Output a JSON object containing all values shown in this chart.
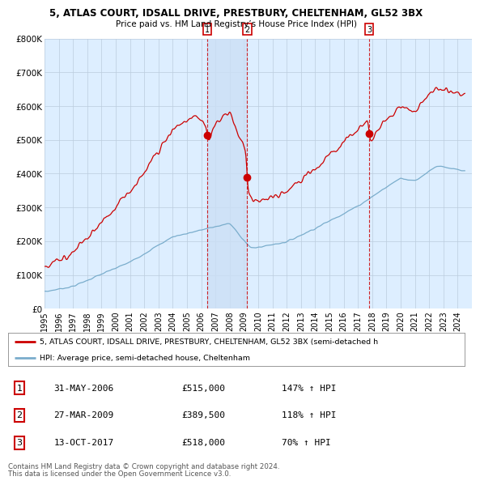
{
  "title_line1": "5, ATLAS COURT, IDSALL DRIVE, PRESTBURY, CHELTENHAM, GL52 3BX",
  "title_line2": "Price paid vs. HM Land Registry’s House Price Index (HPI)",
  "ylim": [
    0,
    800000
  ],
  "yticks": [
    0,
    100000,
    200000,
    300000,
    400000,
    500000,
    600000,
    700000,
    800000
  ],
  "ytick_labels": [
    "£0",
    "£100K",
    "£200K",
    "£300K",
    "£400K",
    "£500K",
    "£600K",
    "£700K",
    "£800K"
  ],
  "sale_color": "#cc0000",
  "hpi_color": "#7aadcc",
  "bg_color": "#ffffff",
  "plot_bg_color": "#ddeeff",
  "grid_color": "#bbccdd",
  "shade_color": "#cce0f5",
  "purchases": [
    {
      "label": "1",
      "date": "31-MAY-2006",
      "x": 2006.42,
      "price": 515000,
      "pct": "147%"
    },
    {
      "label": "2",
      "date": "27-MAR-2009",
      "x": 2009.23,
      "price": 389500,
      "pct": "118%"
    },
    {
      "label": "3",
      "date": "13-OCT-2017",
      "x": 2017.78,
      "price": 518000,
      "pct": "70%"
    }
  ],
  "vline_color": "#cc0000",
  "legend_label_property": "5, ATLAS COURT, IDSALL DRIVE, PRESTBURY, CHELTENHAM, GL52 3BX (semi-detached h",
  "legend_label_hpi": "HPI: Average price, semi-detached house, Cheltenham",
  "footer1": "Contains HM Land Registry data © Crown copyright and database right 2024.",
  "footer2": "This data is licensed under the Open Government Licence v3.0.",
  "xmin": 1995,
  "xmax": 2025
}
